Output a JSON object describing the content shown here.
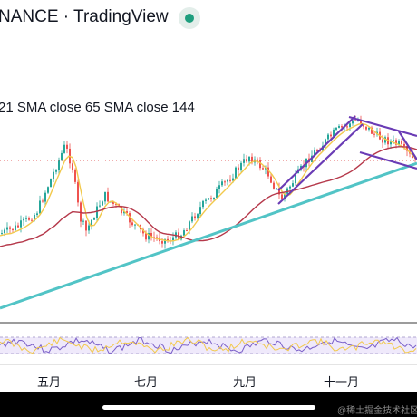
{
  "header": {
    "title": "NANCE · TradingView"
  },
  "legend": {
    "text": "21 SMA close 65 SMA close 144"
  },
  "x_axis": {
    "labels": [
      "五月",
      "七月",
      "九月",
      "十一月"
    ]
  },
  "watermark": "@稀土掘金技术社区",
  "colors": {
    "sma_fast": "#f2c94c",
    "sma_mid": "#4a6fd8",
    "sma_slow": "#b5384a",
    "trendline": "#52c4c6",
    "channel": "#6a3cb5",
    "candle_up": "#26a69a",
    "candle_down": "#ef5350"
  }
}
